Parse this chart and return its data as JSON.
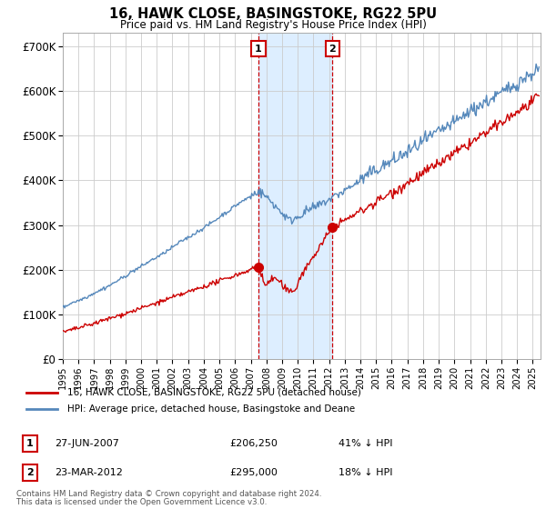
{
  "title": "16, HAWK CLOSE, BASINGSTOKE, RG22 5PU",
  "subtitle": "Price paid vs. HM Land Registry's House Price Index (HPI)",
  "background_color": "#ffffff",
  "plot_bg_color": "#ffffff",
  "grid_color": "#cccccc",
  "hpi_color": "#5588bb",
  "price_color": "#cc0000",
  "highlight_bg": "#ddeeff",
  "ylim": [
    0,
    730000
  ],
  "yticks": [
    0,
    100000,
    200000,
    300000,
    400000,
    500000,
    600000,
    700000
  ],
  "ytick_labels": [
    "£0",
    "£100K",
    "£200K",
    "£300K",
    "£400K",
    "£500K",
    "£600K",
    "£700K"
  ],
  "sale1_date": "27-JUN-2007",
  "sale1_price": 206250,
  "sale1_pct": "41% ↓ HPI",
  "sale1_x": 2007.49,
  "sale2_date": "23-MAR-2012",
  "sale2_price": 295000,
  "sale2_pct": "18% ↓ HPI",
  "sale2_x": 2012.22,
  "legend_line1": "16, HAWK CLOSE, BASINGSTOKE, RG22 5PU (detached house)",
  "legend_line2": "HPI: Average price, detached house, Basingstoke and Deane",
  "footer1": "Contains HM Land Registry data © Crown copyright and database right 2024.",
  "footer2": "This data is licensed under the Open Government Licence v3.0.",
  "xmin": 1995.0,
  "xmax": 2025.5
}
